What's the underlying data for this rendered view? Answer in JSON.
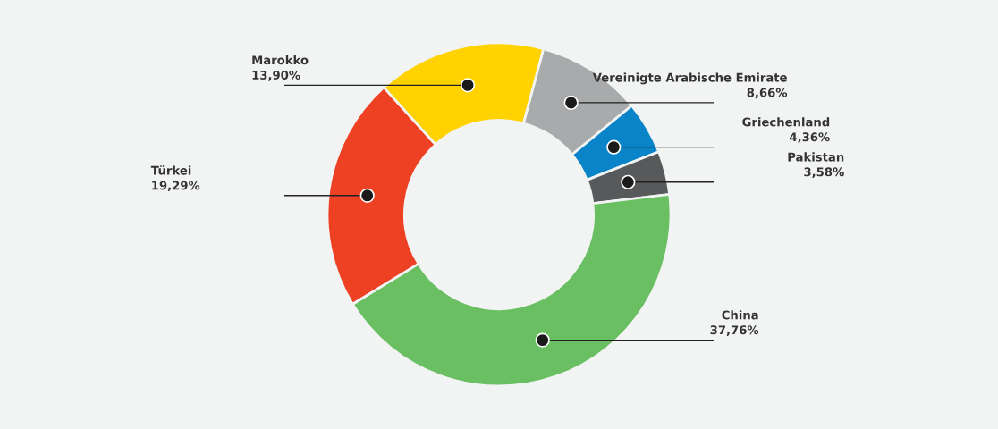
{
  "chart_data": {
    "type": "donut",
    "categories": [
      "Vereinigte Arabische Emirate",
      "Griechenland",
      "Pakistan",
      "China",
      "Türkei",
      "Marokko"
    ],
    "values": [
      8.66,
      4.36,
      3.58,
      37.76,
      19.29,
      13.9
    ],
    "value_labels": [
      "8,66%",
      "4,36%",
      "3,58%",
      "37,76%",
      "19,29%",
      "13,90%"
    ],
    "colors": [
      "#a9aaab",
      "#0a84c8",
      "#58595b",
      "#6abf63",
      "#ee4023",
      "#ffd200"
    ]
  }
}
